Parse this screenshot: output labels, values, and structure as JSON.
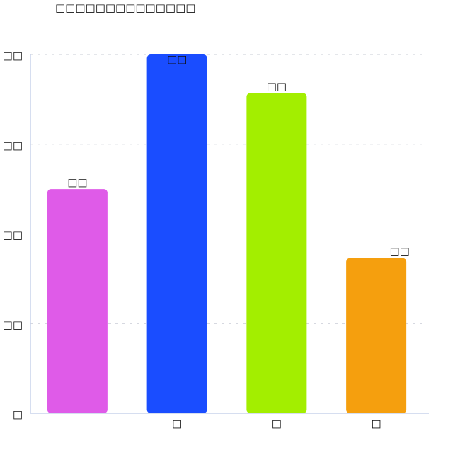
{
  "chart_data": {
    "type": "bar",
    "title": "□□□□□□□□□□□□□□",
    "categories": [
      "",
      "□",
      "□",
      "□"
    ],
    "values": [
      25,
      40,
      35.7,
      17.3
    ],
    "data_labels": [
      "□□",
      "□□",
      "□□",
      "□□"
    ],
    "y_ticks": [
      0,
      10,
      20,
      30,
      40
    ],
    "y_tick_labels": [
      "□",
      "□□",
      "□□",
      "□□",
      "□□"
    ],
    "ylim": [
      0,
      40
    ],
    "grid": true,
    "colors": [
      "#df5be8",
      "#1a4dff",
      "#a3ee00",
      "#f59f0e"
    ],
    "axis_color": "#c9d3ec",
    "grid_color": "#c8ccd6"
  }
}
